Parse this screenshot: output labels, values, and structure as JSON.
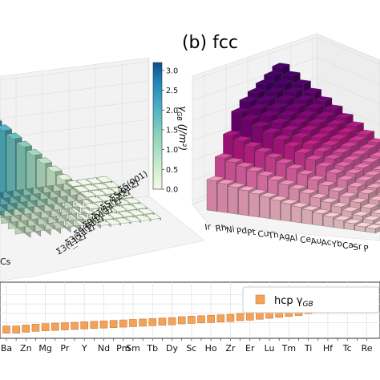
{
  "chart_data": [
    {
      "type": "bar3d",
      "panel": "a",
      "colorbar": {
        "label_main": "γ",
        "label_sub": "GB",
        "label_unit": " (J/m²)",
        "ticks": [
          "0.0",
          "0.5",
          "1.0",
          "1.5",
          "2.0",
          "2.5",
          "3.0"
        ],
        "range": [
          0,
          3.2
        ],
        "colormap": [
          "#f2fbe8",
          "#c6ebc9",
          "#86d0bd",
          "#49afc6",
          "#2183b8",
          "#0b4f8a"
        ]
      },
      "gb_axis_ticks": [
        "Σ5(001)",
        "Σ5(012)",
        "Σ5(122)",
        "Σ7(111)",
        "Σ9(013)",
        "Σ9(011)",
        "Σ3(111)",
        "Σ3(112)"
      ],
      "element_tick_partial": "Cs"
    },
    {
      "type": "bar3d",
      "panel": "b",
      "title": "(b) fcc",
      "elements": [
        "Ir",
        "Rh",
        "Ni",
        "Pd",
        "Pt",
        "Cu",
        "Th",
        "Ag",
        "Al",
        "Ce",
        "Au",
        "Ac",
        "Yb",
        "Ca",
        "Sr",
        "P"
      ],
      "colormap": [
        "#fde0dd",
        "#f7b6c8",
        "#ec6fb0",
        "#c51b8a",
        "#7a0177",
        "#49006a"
      ]
    },
    {
      "type": "scatter",
      "panel": "c",
      "legend": {
        "label_main": "hcp γ",
        "label_sub": "GB",
        "position": "top-right"
      },
      "categories": [
        "Ba",
        "Zn",
        "Mg",
        "Pr",
        "Y",
        "Nd",
        "Pm",
        "Sm",
        "Tb",
        "Dy",
        "Sc",
        "Ho",
        "Zr",
        "Er",
        "Lu",
        "Tm",
        "Ti",
        "Hf",
        "Tc",
        "Re"
      ],
      "points": [
        {
          "label": "Ba",
          "y": 0.05
        },
        {
          "label": "",
          "y": 0.05
        },
        {
          "label": "Zn",
          "y": 0.07
        },
        {
          "label": "",
          "y": 0.09
        },
        {
          "label": "Mg",
          "y": 0.1
        },
        {
          "label": "",
          "y": 0.11
        },
        {
          "label": "Pr",
          "y": 0.12
        },
        {
          "label": "",
          "y": 0.13
        },
        {
          "label": "Y",
          "y": 0.14
        },
        {
          "label": "",
          "y": 0.15
        },
        {
          "label": "Nd",
          "y": 0.16
        },
        {
          "label": "",
          "y": 0.17
        },
        {
          "label": "Pm",
          "y": 0.18
        },
        {
          "label": "Sm",
          "y": 0.19
        },
        {
          "label": "",
          "y": 0.2
        },
        {
          "label": "Tb",
          "y": 0.21
        },
        {
          "label": "",
          "y": 0.22
        },
        {
          "label": "Dy",
          "y": 0.23
        },
        {
          "label": "",
          "y": 0.25
        },
        {
          "label": "Sc",
          "y": 0.26
        },
        {
          "label": "",
          "y": 0.27
        },
        {
          "label": "Ho",
          "y": 0.28
        },
        {
          "label": "",
          "y": 0.29
        },
        {
          "label": "Zr",
          "y": 0.3
        },
        {
          "label": "",
          "y": 0.32
        },
        {
          "label": "Er",
          "y": 0.33
        },
        {
          "label": "",
          "y": 0.35
        },
        {
          "label": "Lu",
          "y": 0.37
        },
        {
          "label": "",
          "y": 0.39
        },
        {
          "label": "Tm",
          "y": 0.41
        },
        {
          "label": "",
          "y": 0.43
        },
        {
          "label": "Ti",
          "y": 0.47
        },
        {
          "label": "",
          "y": 0.52
        },
        {
          "label": "Hf",
          "y": 0.58
        },
        {
          "label": "",
          "y": 0.65
        },
        {
          "label": "Tc",
          "y": 0.73
        },
        {
          "label": "",
          "y": 0.8
        },
        {
          "label": "Re",
          "y": 0.86
        }
      ],
      "ylim": [
        0,
        1
      ],
      "grid": true,
      "marker_color": "#f4a259"
    }
  ]
}
